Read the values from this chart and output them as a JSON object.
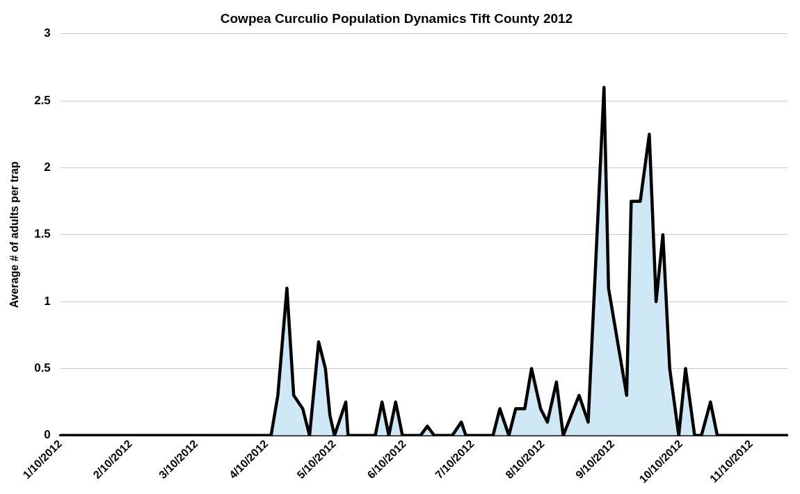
{
  "chart_data": {
    "type": "area",
    "title": "Cowpea Curculio Population Dynamics Tift County 2012",
    "ylabel": "Average # of adults per trap",
    "x": [
      "2012-01-10",
      "2012-04-12",
      "2012-04-15",
      "2012-04-19",
      "2012-04-22",
      "2012-04-26",
      "2012-04-29",
      "2012-05-03",
      "2012-05-06",
      "2012-05-08",
      "2012-05-10",
      "2012-05-15",
      "2012-05-16",
      "2012-05-28",
      "2012-05-31",
      "2012-06-03",
      "2012-06-06",
      "2012-06-09",
      "2012-06-17",
      "2012-06-20",
      "2012-06-23",
      "2012-07-01",
      "2012-07-05",
      "2012-07-07",
      "2012-07-19",
      "2012-07-22",
      "2012-07-26",
      "2012-07-29",
      "2012-08-02",
      "2012-08-05",
      "2012-08-09",
      "2012-08-12",
      "2012-08-16",
      "2012-08-19",
      "2012-08-26",
      "2012-08-30",
      "2012-09-06",
      "2012-09-08",
      "2012-09-14",
      "2012-09-16",
      "2012-09-18",
      "2012-09-22",
      "2012-09-26",
      "2012-09-29",
      "2012-10-02",
      "2012-10-05",
      "2012-10-09",
      "2012-10-12",
      "2012-10-16",
      "2012-10-19",
      "2012-10-23",
      "2012-10-26",
      "2012-11-26"
    ],
    "series": [
      {
        "color": "#cfe8f6",
        "values": [
          0,
          0,
          0.3,
          1.1,
          0.3,
          0.2,
          0,
          0.7,
          0.5,
          0.15,
          0,
          0.25,
          0,
          0,
          0.25,
          0,
          0.25,
          0,
          0,
          0.07,
          0,
          0,
          0.1,
          0,
          0,
          0.2,
          0,
          0.2,
          0.2,
          0.5,
          0.2,
          0.1,
          0.4,
          0,
          0.3,
          0.1,
          2.6,
          1.1,
          0.5,
          0.3,
          1.75,
          1.75,
          2.25,
          1,
          1.5,
          0.5,
          0,
          0.5,
          0,
          0,
          0.25,
          0,
          0
        ]
      }
    ],
    "xlim": [
      "2012-01-10",
      "2012-11-26"
    ],
    "xticks": [
      {
        "value": "2012-01-10",
        "label": "1/10/2012"
      },
      {
        "value": "2012-02-10",
        "label": "2/10/2012"
      },
      {
        "value": "2012-03-10",
        "label": "3/10/2012"
      },
      {
        "value": "2012-04-10",
        "label": "4/10/2012"
      },
      {
        "value": "2012-05-10",
        "label": "5/10/2012"
      },
      {
        "value": "2012-06-10",
        "label": "6/10/2012"
      },
      {
        "value": "2012-07-10",
        "label": "7/10/2012"
      },
      {
        "value": "2012-08-10",
        "label": "8/10/2012"
      },
      {
        "value": "2012-09-10",
        "label": "9/10/2012"
      },
      {
        "value": "2012-10-10",
        "label": "10/10/2012"
      },
      {
        "value": "2012-11-10",
        "label": "11/10/2012"
      }
    ],
    "ylim": [
      0,
      3
    ],
    "yticks": [
      0,
      0.5,
      1,
      1.5,
      2,
      2.5,
      3
    ],
    "grid": "y",
    "legend": false,
    "marker": "none",
    "line_style": "solid"
  }
}
